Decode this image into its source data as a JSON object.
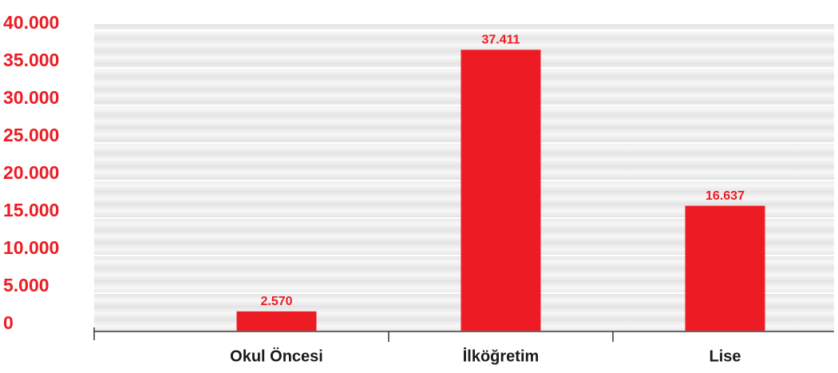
{
  "chart_data": {
    "type": "bar",
    "categories": [
      "Okul Öncesi",
      "İlköğretim",
      "Lise"
    ],
    "values": [
      2570,
      37411,
      16637
    ],
    "value_labels": [
      "2.570",
      "37.411",
      "16.637"
    ],
    "color": "#ed1c24",
    "ylim": [
      0,
      40000
    ],
    "yticks": [
      {
        "value": 0,
        "label": "0"
      },
      {
        "value": 5000,
        "label": "5.000"
      },
      {
        "value": 10000,
        "label": "10.000"
      },
      {
        "value": 15000,
        "label": "15.000"
      },
      {
        "value": 20000,
        "label": "20.000"
      },
      {
        "value": 25000,
        "label": "25.000"
      },
      {
        "value": 30000,
        "label": "30.000"
      },
      {
        "value": 35000,
        "label": "35.000"
      },
      {
        "value": 40000,
        "label": "40.000"
      }
    ],
    "grid": true
  }
}
